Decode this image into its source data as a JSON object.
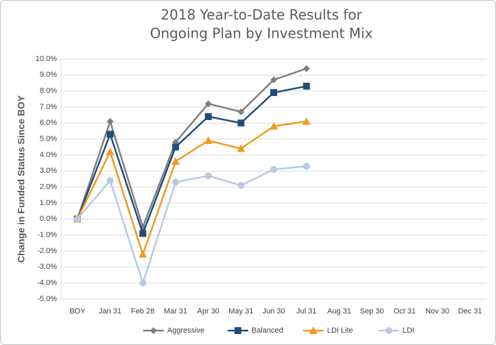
{
  "chart_data": {
    "type": "line",
    "title": [
      "2018 Year-to-Date Results for",
      "Ongoing Plan by Investment Mix"
    ],
    "y_label": "Change in Funded Status Since BOY",
    "categories": [
      "BOY",
      "Jan 31",
      "Feb 28",
      "Mar 31",
      "Apr 30",
      "May 31",
      "Jun 30",
      "Jul 31",
      "Aug 31",
      "Sep 30",
      "Oct 31",
      "Nov 30",
      "Dec 31"
    ],
    "series": [
      {
        "name": "Aggressive",
        "color": "#7f7f7f",
        "marker": "diamond",
        "values": [
          0,
          6.1,
          -0.5,
          4.8,
          7.2,
          6.7,
          8.7,
          9.4,
          null,
          null,
          null,
          null,
          null
        ]
      },
      {
        "name": "Balanced",
        "color": "#1f4e79",
        "marker": "square",
        "values": [
          0,
          5.3,
          -0.9,
          4.5,
          6.4,
          6.0,
          7.9,
          8.3,
          null,
          null,
          null,
          null,
          null
        ]
      },
      {
        "name": "LDI Lite",
        "color": "#f39a1e",
        "marker": "triangle",
        "values": [
          0,
          4.2,
          -2.2,
          3.6,
          4.9,
          4.4,
          5.8,
          6.1,
          null,
          null,
          null,
          null,
          null
        ]
      },
      {
        "name": "LDI",
        "color": "#b8c9e3",
        "marker": "circle",
        "values": [
          0,
          2.4,
          -4.0,
          2.3,
          2.7,
          2.1,
          3.1,
          3.3,
          null,
          null,
          null,
          null,
          null
        ]
      }
    ],
    "ylim": [
      -5,
      10
    ],
    "yticks": [
      {
        "value": -5,
        "label": "-5.0%"
      },
      {
        "value": -4,
        "label": "-4.0%"
      },
      {
        "value": -3,
        "label": "-3.0%"
      },
      {
        "value": -2,
        "label": "-2.0%"
      },
      {
        "value": -1,
        "label": "-1.0%"
      },
      {
        "value": 0,
        "label": "0.0%"
      },
      {
        "value": 1,
        "label": "1.0%"
      },
      {
        "value": 2,
        "label": "2.0%"
      },
      {
        "value": 3,
        "label": "3.0%"
      },
      {
        "value": 4,
        "label": "4.0%"
      },
      {
        "value": 5,
        "label": "5.0%"
      },
      {
        "value": 6,
        "label": "6.0%"
      },
      {
        "value": 7,
        "label": "7.0%"
      },
      {
        "value": 8,
        "label": "8.0%"
      },
      {
        "value": 9,
        "label": "9.0%"
      },
      {
        "value": 10,
        "label": "10.0%"
      }
    ],
    "grid": true,
    "legend": "bottom"
  }
}
